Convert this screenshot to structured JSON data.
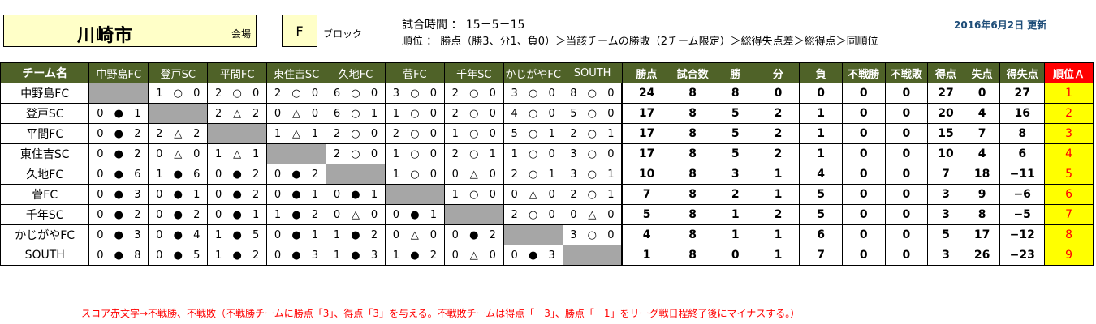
{
  "header": {
    "city": "川崎市",
    "venue_label": "会場",
    "block_value": "F",
    "block_label": "ブロック",
    "match_time": "試合時間 ： 15－5－15",
    "ranking_rule": "順位 ： 勝点（勝3、分1、負0）＞当該チームの勝敗（2チーム限定）＞総得失点差＞総得点＞同順位",
    "updated": "2016年6月2日 更新"
  },
  "table": {
    "team_header": "チーム名",
    "opponents": [
      "中野島FC",
      "登戸SC",
      "平間FC",
      "東住吉SC",
      "久地FC",
      "菅FC",
      "千年SC",
      "かじがやFC",
      "SOUTH"
    ],
    "stat_headers": [
      "勝点",
      "試合数",
      "勝",
      "分",
      "負",
      "不戦勝",
      "不戦敗",
      "得点",
      "失点",
      "得失点"
    ],
    "rank_header": "順位Ａ",
    "rows": [
      {
        "team": "中野島FC",
        "results": [
          null,
          [
            "1",
            "○",
            "0"
          ],
          [
            "2",
            "○",
            "0"
          ],
          [
            "2",
            "○",
            "0"
          ],
          [
            "6",
            "○",
            "0"
          ],
          [
            "3",
            "○",
            "0"
          ],
          [
            "2",
            "○",
            "0"
          ],
          [
            "3",
            "○",
            "0"
          ],
          [
            "8",
            "○",
            "0"
          ]
        ],
        "stats": [
          "24",
          "8",
          "8",
          "0",
          "0",
          "0",
          "0",
          "27",
          "0",
          "27"
        ],
        "rank": "1"
      },
      {
        "team": "登戸SC",
        "results": [
          [
            "0",
            "●",
            "1"
          ],
          null,
          [
            "2",
            "△",
            "2"
          ],
          [
            "0",
            "△",
            "0"
          ],
          [
            "6",
            "○",
            "1"
          ],
          [
            "1",
            "○",
            "0"
          ],
          [
            "2",
            "○",
            "0"
          ],
          [
            "4",
            "○",
            "0"
          ],
          [
            "5",
            "○",
            "0"
          ]
        ],
        "stats": [
          "17",
          "8",
          "5",
          "2",
          "1",
          "0",
          "0",
          "20",
          "4",
          "16"
        ],
        "rank": "2"
      },
      {
        "team": "平間FC",
        "results": [
          [
            "0",
            "●",
            "2"
          ],
          [
            "2",
            "△",
            "2"
          ],
          null,
          [
            "1",
            "△",
            "1"
          ],
          [
            "2",
            "○",
            "0"
          ],
          [
            "2",
            "○",
            "0"
          ],
          [
            "1",
            "○",
            "0"
          ],
          [
            "5",
            "○",
            "1"
          ],
          [
            "2",
            "○",
            "1"
          ]
        ],
        "stats": [
          "17",
          "8",
          "5",
          "2",
          "1",
          "0",
          "0",
          "15",
          "7",
          "8"
        ],
        "rank": "3"
      },
      {
        "team": "東住吉SC",
        "results": [
          [
            "0",
            "●",
            "2"
          ],
          [
            "0",
            "△",
            "0"
          ],
          [
            "1",
            "△",
            "1"
          ],
          null,
          [
            "2",
            "○",
            "0"
          ],
          [
            "1",
            "○",
            "0"
          ],
          [
            "2",
            "○",
            "1"
          ],
          [
            "1",
            "○",
            "0"
          ],
          [
            "3",
            "○",
            "0"
          ]
        ],
        "stats": [
          "17",
          "8",
          "5",
          "2",
          "1",
          "0",
          "0",
          "10",
          "4",
          "6"
        ],
        "rank": "4"
      },
      {
        "team": "久地FC",
        "results": [
          [
            "0",
            "●",
            "6"
          ],
          [
            "1",
            "●",
            "6"
          ],
          [
            "0",
            "●",
            "2"
          ],
          [
            "0",
            "●",
            "2"
          ],
          null,
          [
            "1",
            "○",
            "0"
          ],
          [
            "0",
            "△",
            "0"
          ],
          [
            "2",
            "○",
            "1"
          ],
          [
            "3",
            "○",
            "1"
          ]
        ],
        "stats": [
          "10",
          "8",
          "3",
          "1",
          "4",
          "0",
          "0",
          "7",
          "18",
          "−11"
        ],
        "rank": "5"
      },
      {
        "team": "菅FC",
        "results": [
          [
            "0",
            "●",
            "3"
          ],
          [
            "0",
            "●",
            "1"
          ],
          [
            "0",
            "●",
            "2"
          ],
          [
            "0",
            "●",
            "1"
          ],
          [
            "0",
            "●",
            "1"
          ],
          null,
          [
            "1",
            "○",
            "0"
          ],
          [
            "0",
            "△",
            "0"
          ],
          [
            "2",
            "○",
            "1"
          ]
        ],
        "stats": [
          "7",
          "8",
          "2",
          "1",
          "5",
          "0",
          "0",
          "3",
          "9",
          "−6"
        ],
        "rank": "6"
      },
      {
        "team": "千年SC",
        "results": [
          [
            "0",
            "●",
            "2"
          ],
          [
            "0",
            "●",
            "2"
          ],
          [
            "0",
            "●",
            "1"
          ],
          [
            "1",
            "●",
            "2"
          ],
          [
            "0",
            "△",
            "0"
          ],
          [
            "0",
            "●",
            "1"
          ],
          null,
          [
            "2",
            "○",
            "0"
          ],
          [
            "0",
            "△",
            "0"
          ]
        ],
        "stats": [
          "5",
          "8",
          "1",
          "2",
          "5",
          "0",
          "0",
          "3",
          "8",
          "−5"
        ],
        "rank": "7"
      },
      {
        "team": "かじがやFC",
        "results": [
          [
            "0",
            "●",
            "3"
          ],
          [
            "0",
            "●",
            "4"
          ],
          [
            "1",
            "●",
            "5"
          ],
          [
            "0",
            "●",
            "1"
          ],
          [
            "1",
            "●",
            "2"
          ],
          [
            "0",
            "△",
            "0"
          ],
          [
            "0",
            "●",
            "2"
          ],
          null,
          [
            "3",
            "○",
            "0"
          ]
        ],
        "stats": [
          "4",
          "8",
          "1",
          "1",
          "6",
          "0",
          "0",
          "5",
          "17",
          "−12"
        ],
        "rank": "8"
      },
      {
        "team": "SOUTH",
        "results": [
          [
            "0",
            "●",
            "8"
          ],
          [
            "0",
            "●",
            "5"
          ],
          [
            "1",
            "●",
            "2"
          ],
          [
            "0",
            "●",
            "3"
          ],
          [
            "1",
            "●",
            "3"
          ],
          [
            "1",
            "●",
            "2"
          ],
          [
            "0",
            "△",
            "0"
          ],
          [
            "0",
            "●",
            "3"
          ],
          null
        ],
        "stats": [
          "1",
          "8",
          "0",
          "1",
          "7",
          "0",
          "0",
          "3",
          "26",
          "−23"
        ],
        "rank": "9"
      }
    ]
  },
  "footnote": "スコア赤文字→不戦勝、不戦敗（不戦勝チームに勝点「3」、得点「3」を与える。不戦敗チームは得点「－3」、勝点「－1」をリーグ戦日程終了後にマイナスする。）"
}
